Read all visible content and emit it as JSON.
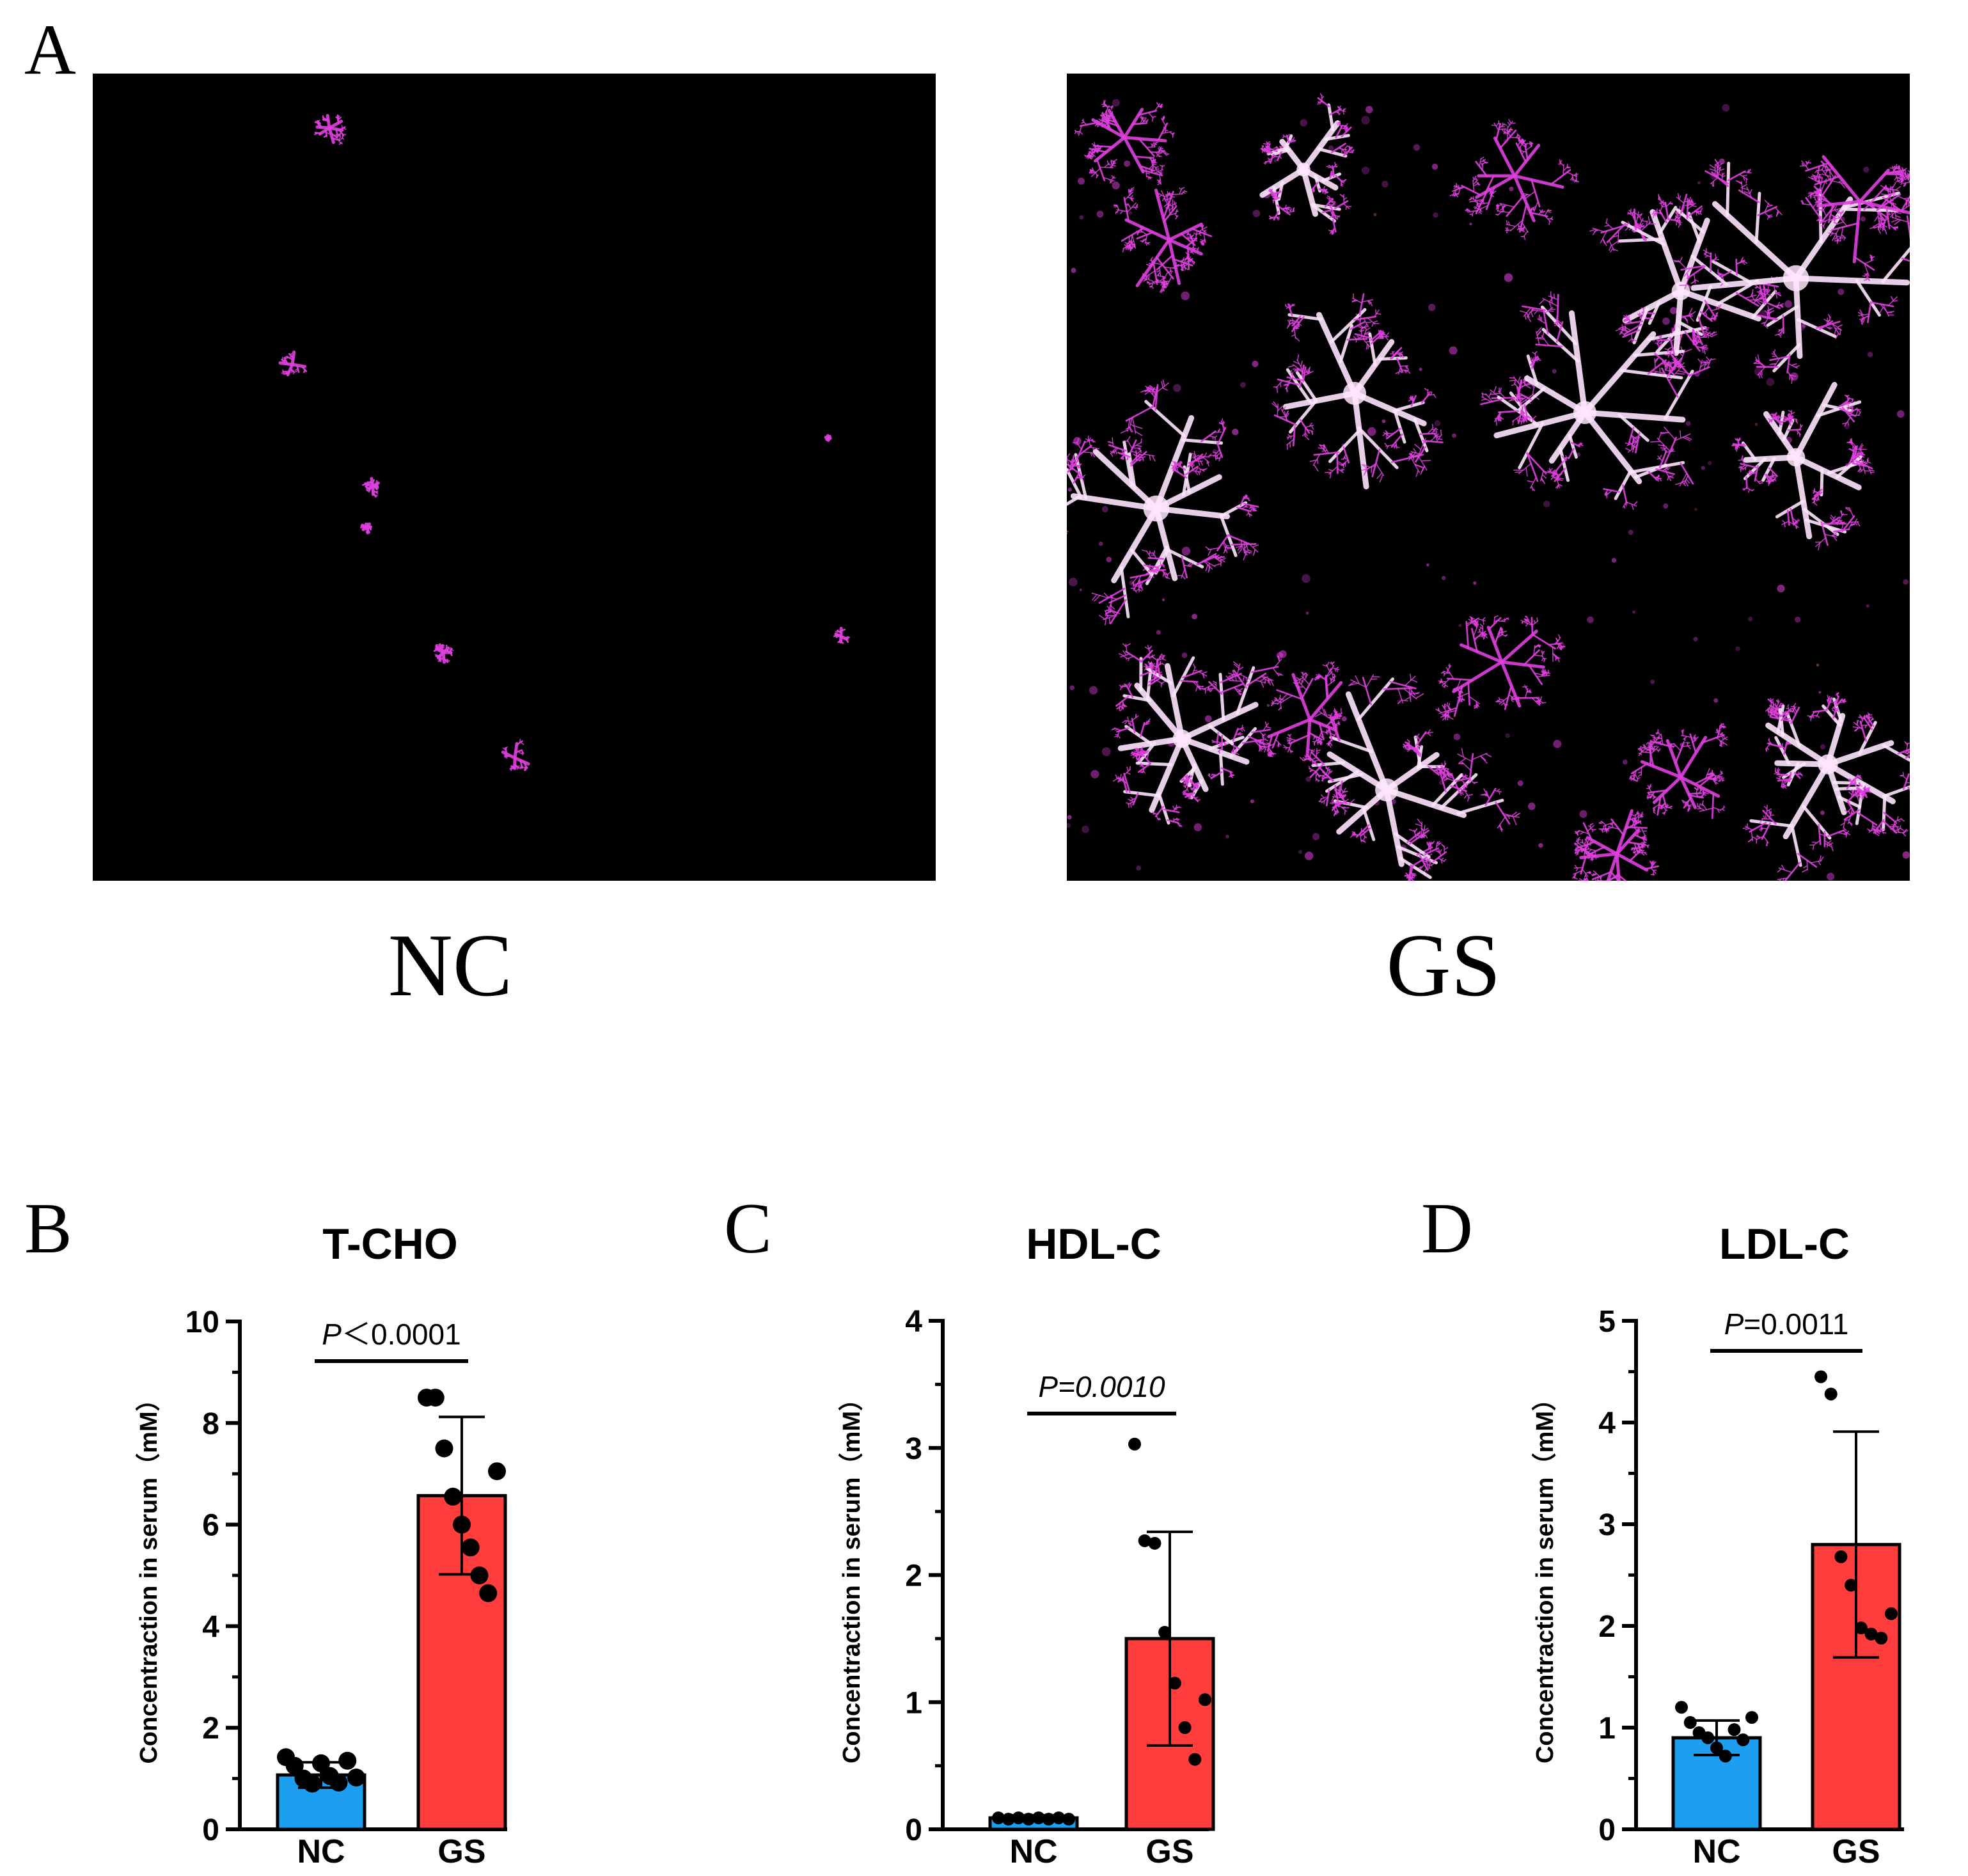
{
  "panel_a": {
    "letter": "A",
    "images": [
      {
        "label": "NC",
        "description_icon": "sparse-crystal-micrograph"
      },
      {
        "label": "GS",
        "description_icon": "dense-dendritic-crystal-micrograph"
      }
    ],
    "colors": {
      "background": "#000000",
      "crystal": "#e040e0",
      "crystal_bright": "#ffe6ff"
    }
  },
  "colors": {
    "nc_bar": "#1e9ef0",
    "gs_bar": "#ff3d3d",
    "axis": "#000000"
  },
  "chart_data": [
    {
      "panel_letter": "B",
      "type": "bar",
      "title": "T-CHO",
      "ylabel": "Concentraction in serum（mM）",
      "categories": [
        "NC",
        "GS"
      ],
      "values": [
        1.07,
        6.57
      ],
      "sd": [
        0.25,
        1.55
      ],
      "points": [
        [
          1.42,
          1.25,
          1.0,
          0.9,
          1.3,
          1.05,
          0.92,
          1.35,
          1.02
        ],
        [
          8.5,
          8.5,
          7.5,
          6.55,
          6.0,
          5.55,
          5.0,
          4.65,
          7.05
        ]
      ],
      "ylim": [
        0,
        10
      ],
      "yticks": [
        "0",
        "2",
        "4",
        "6",
        "8",
        "10"
      ],
      "p_italic": "P",
      "p_rest": "＜0.0001"
    },
    {
      "panel_letter": "C",
      "type": "bar",
      "title": "HDL-C",
      "ylabel": "Concentraction in serum（mM）",
      "categories": [
        "NC",
        "GS"
      ],
      "values": [
        0.09,
        1.5
      ],
      "sd": [
        0.02,
        0.84
      ],
      "points": [
        [
          0.09,
          0.08,
          0.09,
          0.08,
          0.09,
          0.08,
          0.09,
          0.08
        ],
        [
          3.03,
          2.27,
          2.25,
          1.55,
          1.15,
          0.8,
          0.55,
          1.02
        ]
      ],
      "ylim": [
        0,
        4
      ],
      "yticks": [
        "0",
        "1",
        "2",
        "3",
        "4"
      ],
      "p_italic": "P=0.0010",
      "p_rest": ""
    },
    {
      "panel_letter": "D",
      "type": "bar",
      "title": "LDL-C",
      "ylabel": "Concentraction in serum（mM）",
      "categories": [
        "NC",
        "GS"
      ],
      "values": [
        0.9,
        2.8
      ],
      "sd": [
        0.17,
        1.11
      ],
      "points": [
        [
          1.2,
          1.05,
          0.95,
          0.9,
          0.8,
          0.72,
          0.98,
          0.88,
          1.1
        ],
        [
          4.45,
          4.28,
          2.68,
          2.4,
          1.98,
          1.92,
          1.88,
          2.12
        ]
      ],
      "ylim": [
        0,
        5
      ],
      "yticks": [
        "0",
        "1",
        "2",
        "3",
        "4",
        "5"
      ],
      "p_italic": "P",
      "p_rest": "=0.0011"
    }
  ]
}
